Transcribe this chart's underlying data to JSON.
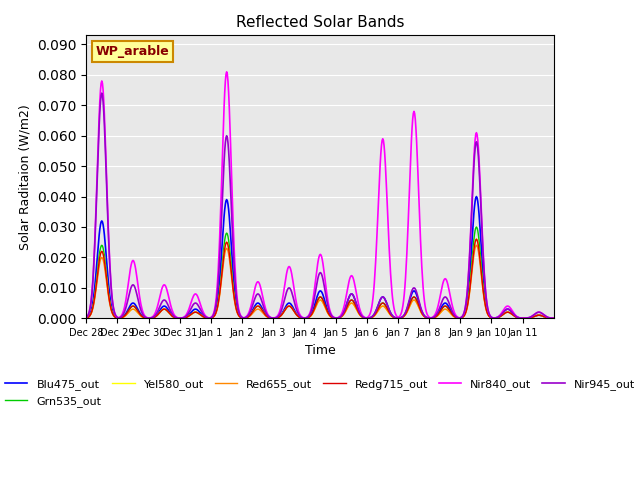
{
  "title": "Reflected Solar Bands",
  "xlabel": "Time",
  "ylabel": "Solar Raditaion (W/m2)",
  "ylim": [
    0,
    0.093
  ],
  "yticks": [
    0.0,
    0.01,
    0.02,
    0.03,
    0.04,
    0.05,
    0.06,
    0.07,
    0.08,
    0.09
  ],
  "annotation_text": "WP_arable",
  "annotation_box_color": "#FFFF99",
  "annotation_box_edge": "#CC8800",
  "annotation_text_color": "#880000",
  "bg_color": "#E8E8E8",
  "series": {
    "Blu475_out": {
      "color": "#0000FF",
      "lw": 1.2
    },
    "Grn535_out": {
      "color": "#00CC00",
      "lw": 1.0
    },
    "Yel580_out": {
      "color": "#FFFF00",
      "lw": 1.0
    },
    "Red655_out": {
      "color": "#FF8800",
      "lw": 1.0
    },
    "Redg715_out": {
      "color": "#DD0000",
      "lw": 1.0
    },
    "Nir840_out": {
      "color": "#FF00FF",
      "lw": 1.2
    },
    "Nir945_out": {
      "color": "#9900CC",
      "lw": 1.2
    }
  },
  "xtick_positions": [
    0,
    1,
    2,
    3,
    4,
    5,
    6,
    7,
    8,
    9,
    10,
    11,
    12,
    13,
    14
  ],
  "xtick_labels": [
    "Dec 28",
    "Dec 29",
    "Dec 30",
    "Dec 31",
    "Jan 1",
    "Jan 2",
    "Jan 3",
    "Jan 4",
    "Jan 5",
    "Jan 6",
    "Jan 7",
    "Jan 8",
    "Jan 9",
    "Jan 10",
    "Jan 11"
  ],
  "n_days": 15,
  "points_per_day": 48,
  "peaks": {
    "day0": {
      "blu": 0.032,
      "grn": 0.024,
      "yel": 0.022,
      "red": 0.02,
      "redg": 0.022,
      "nir840": 0.078,
      "nir945": 0.074
    },
    "day1": {
      "blu": 0.005,
      "grn": 0.004,
      "yel": 0.003,
      "red": 0.003,
      "redg": 0.004,
      "nir840": 0.019,
      "nir945": 0.011
    },
    "day2": {
      "blu": 0.004,
      "grn": 0.003,
      "yel": 0.003,
      "red": 0.003,
      "redg": 0.003,
      "nir840": 0.011,
      "nir945": 0.006
    },
    "day3": {
      "blu": 0.003,
      "grn": 0.002,
      "yel": 0.002,
      "red": 0.002,
      "redg": 0.002,
      "nir840": 0.008,
      "nir945": 0.005
    },
    "day4": {
      "blu": 0.039,
      "grn": 0.028,
      "yel": 0.025,
      "red": 0.023,
      "redg": 0.025,
      "nir840": 0.081,
      "nir945": 0.06
    },
    "day5": {
      "blu": 0.005,
      "grn": 0.004,
      "yel": 0.004,
      "red": 0.003,
      "redg": 0.004,
      "nir840": 0.012,
      "nir945": 0.008
    },
    "day6": {
      "blu": 0.005,
      "grn": 0.004,
      "yel": 0.004,
      "red": 0.004,
      "redg": 0.004,
      "nir840": 0.017,
      "nir945": 0.01
    },
    "day7": {
      "blu": 0.009,
      "grn": 0.007,
      "yel": 0.006,
      "red": 0.006,
      "redg": 0.007,
      "nir840": 0.021,
      "nir945": 0.015
    },
    "day8": {
      "blu": 0.008,
      "grn": 0.006,
      "yel": 0.005,
      "red": 0.005,
      "redg": 0.006,
      "nir840": 0.014,
      "nir945": 0.008
    },
    "day9": {
      "blu": 0.007,
      "grn": 0.005,
      "yel": 0.004,
      "red": 0.004,
      "redg": 0.005,
      "nir840": 0.059,
      "nir945": 0.007
    },
    "day10": {
      "blu": 0.009,
      "grn": 0.007,
      "yel": 0.006,
      "red": 0.006,
      "redg": 0.007,
      "nir840": 0.068,
      "nir945": 0.01
    },
    "day11": {
      "blu": 0.005,
      "grn": 0.004,
      "yel": 0.003,
      "red": 0.003,
      "redg": 0.004,
      "nir840": 0.013,
      "nir945": 0.007
    },
    "day12": {
      "blu": 0.04,
      "grn": 0.03,
      "yel": 0.026,
      "red": 0.024,
      "redg": 0.026,
      "nir840": 0.061,
      "nir945": 0.058
    },
    "day13": {
      "blu": 0.003,
      "grn": 0.002,
      "yel": 0.002,
      "red": 0.002,
      "redg": 0.002,
      "nir840": 0.004,
      "nir945": 0.003
    },
    "day14": {
      "blu": 0.001,
      "grn": 0.001,
      "yel": 0.001,
      "red": 0.001,
      "redg": 0.001,
      "nir840": 0.002,
      "nir945": 0.002
    }
  }
}
